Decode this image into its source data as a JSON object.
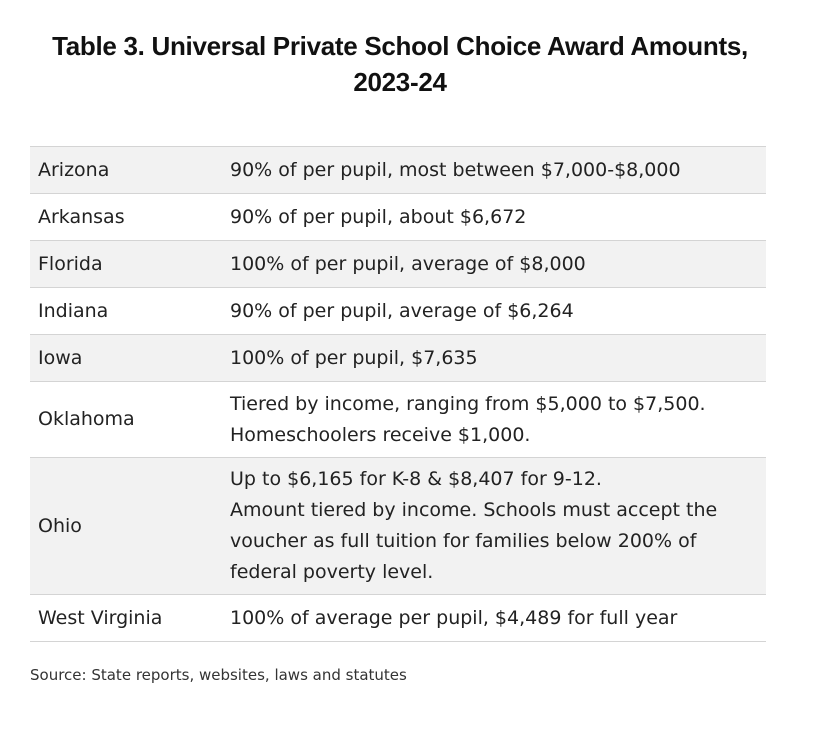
{
  "title": {
    "line1": "Table 3. Universal Private School Choice Award Amounts,",
    "line2": "2023-24"
  },
  "table": {
    "rows": [
      {
        "state": "Arizona",
        "amount": "90% of per pupil, most between $7,000-$8,000"
      },
      {
        "state": "Arkansas",
        "amount": "90% of per pupil, about $6,672"
      },
      {
        "state": "Florida",
        "amount": "100% of per pupil, average of $8,000"
      },
      {
        "state": "Indiana",
        "amount": "90% of per pupil, average of $6,264"
      },
      {
        "state": "Iowa",
        "amount": "100% of per pupil, $7,635"
      },
      {
        "state": "Oklahoma",
        "amount": "Tiered by income, ranging from $5,000 to $7,500.\nHomeschoolers receive $1,000."
      },
      {
        "state": "Ohio",
        "amount": "Up to $6,165 for K-8 & $8,407 for 9-12.\nAmount tiered by income. Schools must accept the\nvoucher as full tuition for families below 200% of\nfederal poverty level."
      },
      {
        "state": "West Virginia",
        "amount": "100% of average per pupil, $4,489 for full year"
      }
    ]
  },
  "source": "Source: State reports, websites, laws and statutes"
}
